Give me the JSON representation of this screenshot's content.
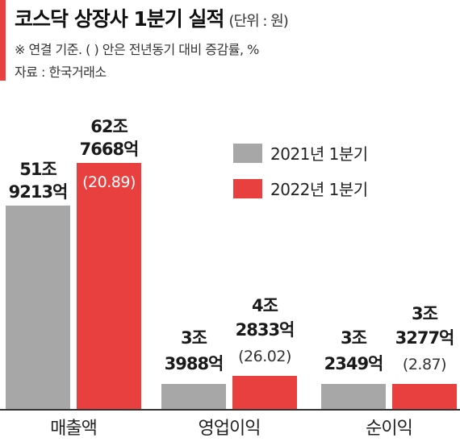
{
  "header": {
    "title": "코스닥 상장사 1분기 실적",
    "unit": "(단위 : 원)",
    "note": "※ 연결 기준. (   ) 안은 전년동기 대비 증감률, %",
    "source": "자료 : 한국거래소"
  },
  "colors": {
    "accent": "#e8403f",
    "series_2021": "#a7a7a7",
    "series_2022": "#e8403f",
    "axis": "#333333"
  },
  "chart_data": {
    "type": "bar",
    "categories": [
      "매출액",
      "영업이익",
      "순이익"
    ],
    "series": [
      {
        "name": "2021년 1분기",
        "values": [
          51.9213,
          3.3988,
          3.2349
        ],
        "labels": [
          [
            "51조",
            "9213억"
          ],
          [
            "3조",
            "3988억"
          ],
          [
            "3조",
            "2349억"
          ]
        ]
      },
      {
        "name": "2022년 1분기",
        "values": [
          62.7668,
          4.2833,
          3.3277
        ],
        "labels": [
          [
            "62조",
            "7668억"
          ],
          [
            "4조",
            "2833억"
          ],
          [
            "3조",
            "3277억"
          ]
        ],
        "growth": [
          "(20.89)",
          "(26.02)",
          "(2.87)"
        ]
      }
    ],
    "value_unit": "조 원",
    "legend_position": "top-right",
    "grid": false
  }
}
